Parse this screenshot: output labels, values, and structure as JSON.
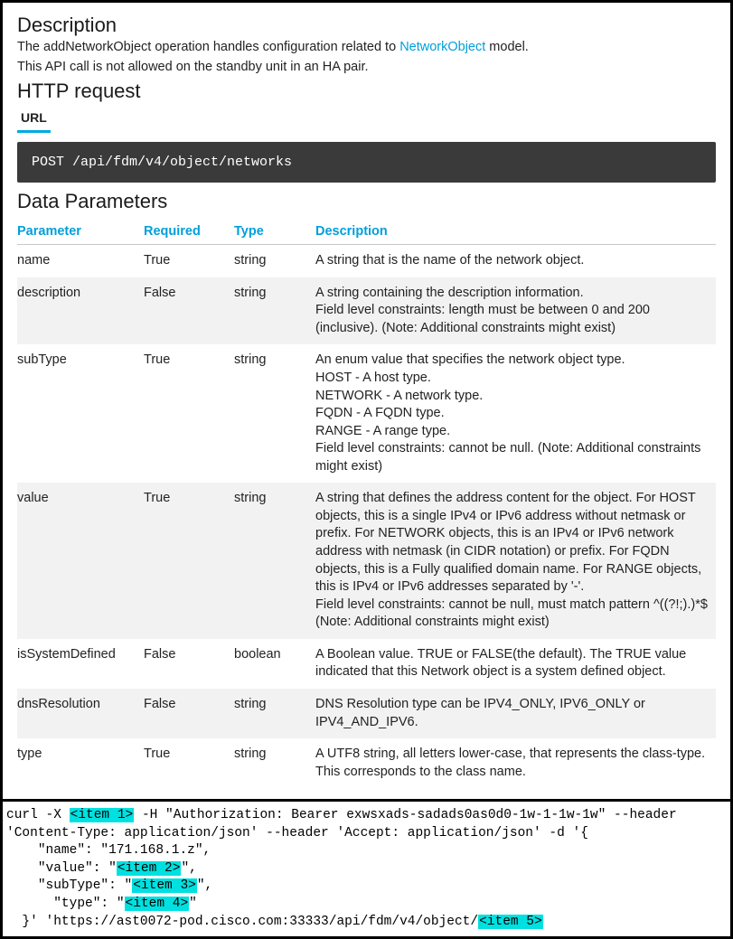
{
  "top": {
    "h_desc": "Description",
    "desc_before": "The addNetworkObject operation handles configuration related to ",
    "desc_link": "NetworkObject",
    "desc_after": " model.",
    "desc_line2": "This API call is not allowed on the standby unit in an HA pair.",
    "h_http": "HTTP request",
    "tab_url": "URL",
    "code": "POST /api/fdm/v4/object/networks",
    "h_params": "Data Parameters",
    "th": {
      "param": "Parameter",
      "req": "Required",
      "type": "Type",
      "desc": "Description"
    },
    "rows": [
      {
        "param": "name",
        "req": "True",
        "type": "string",
        "desc": "A string that is the name of the network object."
      },
      {
        "param": "description",
        "req": "False",
        "type": "string",
        "desc": "A string containing the description information.\nField level constraints: length must be between 0 and 200 (inclusive). (Note: Additional constraints might exist)"
      },
      {
        "param": "subType",
        "req": "True",
        "type": "string",
        "desc": "An enum value that specifies the network object type.\nHOST - A host type.\nNETWORK - A network type.\nFQDN - A FQDN type.\nRANGE - A range type.\nField level constraints: cannot be null. (Note: Additional constraints might exist)"
      },
      {
        "param": "value",
        "req": "True",
        "type": "string",
        "desc": "A string that defines the address content for the object. For HOST objects, this is a single IPv4 or IPv6 address without netmask or prefix. For NETWORK objects, this is an IPv4 or IPv6 network address with netmask (in CIDR notation) or prefix. For FQDN objects, this is a Fully qualified domain name. For RANGE objects, this is IPv4 or IPv6 addresses separated by '-'.\nField level constraints: cannot be null, must match pattern ^((?!;).)*$ (Note: Additional constraints might exist)"
      },
      {
        "param": "isSystemDefined",
        "req": "False",
        "type": "boolean",
        "desc": "A Boolean value. TRUE or FALSE(the default). The TRUE value indicated that this Network object is a system defined object."
      },
      {
        "param": "dnsResolution",
        "req": "False",
        "type": "string",
        "desc": "DNS Resolution type can be IPV4_ONLY, IPV6_ONLY or IPV4_AND_IPV6."
      },
      {
        "param": "type",
        "req": "True",
        "type": "string",
        "desc": "A UTF8 string, all letters lower-case, that represents the class-type.\nThis corresponds to the class name."
      }
    ]
  },
  "curl": {
    "p1": "curl -X ",
    "i1": "<item 1>",
    "p2": " -H \"Authorization: Bearer exwsxads-sadads0as0d0-1w-1-1w-1w\" --header",
    "p3": "'Content-Type: application/json' --header 'Accept: application/json' -d '{",
    "p4": "    \"name\": \"171.168.1.z\",",
    "p5a": "    \"value\": \"",
    "i2": "<item 2>",
    "p5b": "\",",
    "p6a": "    \"subType\": \"",
    "i3": "<item 3>",
    "p6b": "\",",
    "p7a": "      \"type\": \"",
    "i4": "<item 4>",
    "p7b": "\"",
    "p8a": "  }' 'https://ast0072-pod.cisco.com:33333/api/fdm/v4/object/",
    "i5": "<item 5>"
  },
  "colors": {
    "link": "#009fdb",
    "tab_underline": "#00a9e0",
    "codeblock_bg": "#3a3a3a",
    "codeblock_fg": "#ffffff",
    "row_alt_bg": "#f2f2f2",
    "highlight_bg": "#00e0e0",
    "border": "#000000"
  }
}
